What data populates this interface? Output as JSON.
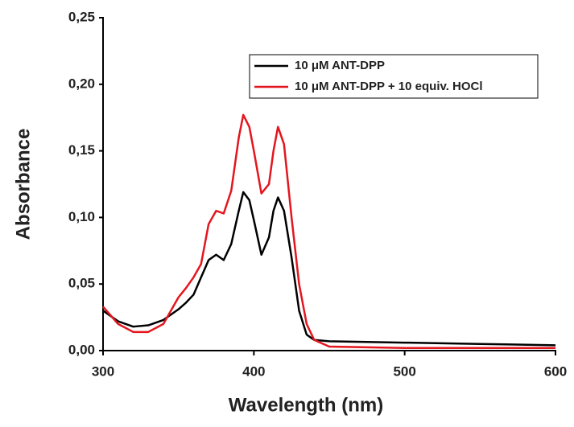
{
  "chart_data": {
    "type": "line",
    "x_label": "Wavelength (nm)",
    "y_label": "Absorbance",
    "x": [
      300,
      310,
      320,
      330,
      340,
      350,
      355,
      360,
      365,
      370,
      375,
      380,
      385,
      390,
      393,
      397,
      400,
      405,
      410,
      413,
      416,
      420,
      425,
      430,
      435,
      440,
      450,
      500,
      550,
      600
    ],
    "series": [
      {
        "name": "10 μM ANT-DPP",
        "color": "#000000",
        "values": [
          0.03,
          0.022,
          0.018,
          0.019,
          0.023,
          0.031,
          0.036,
          0.042,
          0.055,
          0.068,
          0.072,
          0.068,
          0.08,
          0.105,
          0.119,
          0.113,
          0.098,
          0.072,
          0.085,
          0.105,
          0.115,
          0.105,
          0.07,
          0.03,
          0.012,
          0.008,
          0.007,
          0.006,
          0.005,
          0.004
        ]
      },
      {
        "name": "10 μM ANT-DPP + 10 equiv. HOCl",
        "color": "#e3161e",
        "values": [
          0.033,
          0.02,
          0.014,
          0.014,
          0.02,
          0.04,
          0.047,
          0.055,
          0.065,
          0.095,
          0.105,
          0.103,
          0.12,
          0.16,
          0.177,
          0.168,
          0.15,
          0.118,
          0.125,
          0.15,
          0.168,
          0.155,
          0.1,
          0.05,
          0.02,
          0.008,
          0.003,
          0.002,
          0.002,
          0.002
        ]
      }
    ],
    "xlim": [
      300,
      600
    ],
    "xticks": [
      300,
      400,
      500,
      600
    ],
    "ylim": [
      0,
      0.25
    ],
    "yticks": [
      {
        "value": 0,
        "label": "0,00"
      },
      {
        "value": 0.05,
        "label": "0,05"
      },
      {
        "value": 0.1,
        "label": "0,10"
      },
      {
        "value": 0.15,
        "label": "0,15"
      },
      {
        "value": 0.2,
        "label": "0,20"
      },
      {
        "value": 0.25,
        "label": "0,25"
      }
    ],
    "grid": false,
    "legend": "upper right"
  }
}
